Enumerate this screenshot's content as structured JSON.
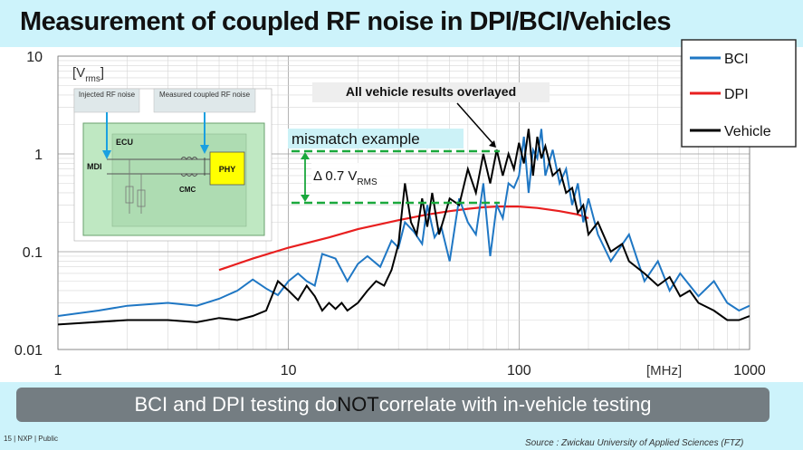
{
  "title": "Measurement of coupled RF noise in DPI/BCI/Vehicles",
  "banner": {
    "before": "BCI and DPI testing do ",
    "emph": "NOT",
    "after": " correlate with in-vehicle testing"
  },
  "footer": {
    "left": "15 | NXP | Public",
    "right": "Source : Zwickau University of Applied Sciences (FTZ)"
  },
  "inset": {
    "injected_label": "Injected RF noise",
    "measured_label": "Measured coupled RF noise",
    "ecu": "ECU",
    "mdi": "MDI",
    "cmc": "CMC",
    "phy": "PHY"
  },
  "annotations": {
    "overlay": "All vehicle results overlayed",
    "mismatch": "mismatch example",
    "delta_main": "Δ 0.7 V",
    "delta_sub": "RMS"
  },
  "colors": {
    "bci": "#1f77c4",
    "dpi": "#e81f1f",
    "vehicle": "#000000",
    "green": "#1aa83c"
  },
  "chart_data": {
    "type": "line",
    "x_scale": "log",
    "y_scale": "log",
    "xlim": [
      1,
      1000
    ],
    "ylim": [
      0.01,
      10
    ],
    "x_ticks": [
      "1",
      "10",
      "100",
      "1000"
    ],
    "y_ticks": [
      "10",
      "1",
      "0.1",
      "0.01"
    ],
    "xlabel": "[MHz]",
    "ylabel_main": "[V",
    "ylabel_sub": "rms",
    "ylabel_end": "]",
    "grid": true,
    "legend_position": "top-right",
    "series": [
      {
        "name": "BCI",
        "x": [
          1,
          1.5,
          2,
          3,
          4,
          5,
          6,
          7,
          8,
          9,
          10,
          11,
          12,
          13,
          14,
          16,
          18,
          20,
          22,
          25,
          28,
          30,
          32,
          35,
          38,
          40,
          43,
          46,
          50,
          55,
          60,
          65,
          70,
          75,
          80,
          85,
          90,
          95,
          100,
          105,
          110,
          115,
          120,
          125,
          130,
          140,
          150,
          160,
          170,
          180,
          190,
          200,
          220,
          250,
          300,
          350,
          400,
          450,
          500,
          600,
          700,
          800,
          900,
          1000
        ],
        "y": [
          0.022,
          0.025,
          0.028,
          0.03,
          0.028,
          0.033,
          0.04,
          0.052,
          0.042,
          0.036,
          0.05,
          0.06,
          0.05,
          0.045,
          0.095,
          0.085,
          0.05,
          0.075,
          0.09,
          0.07,
          0.13,
          0.11,
          0.2,
          0.16,
          0.12,
          0.3,
          0.14,
          0.18,
          0.08,
          0.35,
          0.2,
          0.15,
          0.5,
          0.09,
          0.3,
          0.22,
          0.5,
          0.45,
          0.6,
          1.5,
          0.4,
          1.1,
          0.9,
          1.8,
          0.6,
          1.1,
          0.5,
          0.7,
          0.3,
          0.5,
          0.2,
          0.35,
          0.15,
          0.08,
          0.15,
          0.05,
          0.08,
          0.04,
          0.06,
          0.035,
          0.05,
          0.03,
          0.025,
          0.028
        ]
      },
      {
        "name": "DPI",
        "x": [
          5,
          7,
          10,
          15,
          20,
          30,
          40,
          50,
          60,
          70,
          80,
          90,
          100,
          120,
          150,
          180,
          200
        ],
        "y": [
          0.065,
          0.085,
          0.11,
          0.14,
          0.17,
          0.21,
          0.24,
          0.26,
          0.275,
          0.285,
          0.29,
          0.29,
          0.29,
          0.28,
          0.26,
          0.24,
          0.22
        ]
      },
      {
        "name": "Vehicle",
        "x": [
          1,
          2,
          3,
          4,
          5,
          6,
          7,
          8,
          9,
          10,
          11,
          12,
          13,
          14,
          15,
          16,
          17,
          18,
          20,
          22,
          24,
          26,
          28,
          30,
          32,
          34,
          36,
          38,
          40,
          42,
          45,
          48,
          50,
          55,
          60,
          65,
          70,
          75,
          80,
          85,
          90,
          95,
          100,
          105,
          110,
          115,
          120,
          125,
          130,
          140,
          150,
          160,
          170,
          180,
          190,
          200,
          220,
          250,
          280,
          300,
          350,
          400,
          450,
          500,
          550,
          600,
          700,
          800,
          900,
          1000
        ],
        "y": [
          0.018,
          0.02,
          0.02,
          0.019,
          0.021,
          0.02,
          0.022,
          0.025,
          0.05,
          0.04,
          0.032,
          0.045,
          0.035,
          0.025,
          0.03,
          0.026,
          0.03,
          0.025,
          0.03,
          0.04,
          0.05,
          0.045,
          0.065,
          0.12,
          0.5,
          0.2,
          0.15,
          0.35,
          0.18,
          0.4,
          0.15,
          0.25,
          0.35,
          0.3,
          0.7,
          0.4,
          1.0,
          0.5,
          1.1,
          0.6,
          1.0,
          0.7,
          1.3,
          0.8,
          1.8,
          0.6,
          1.5,
          0.9,
          1.2,
          0.6,
          0.7,
          0.4,
          0.45,
          0.25,
          0.3,
          0.15,
          0.2,
          0.1,
          0.12,
          0.08,
          0.06,
          0.045,
          0.055,
          0.035,
          0.04,
          0.03,
          0.025,
          0.02,
          0.02,
          0.022
        ]
      }
    ]
  }
}
